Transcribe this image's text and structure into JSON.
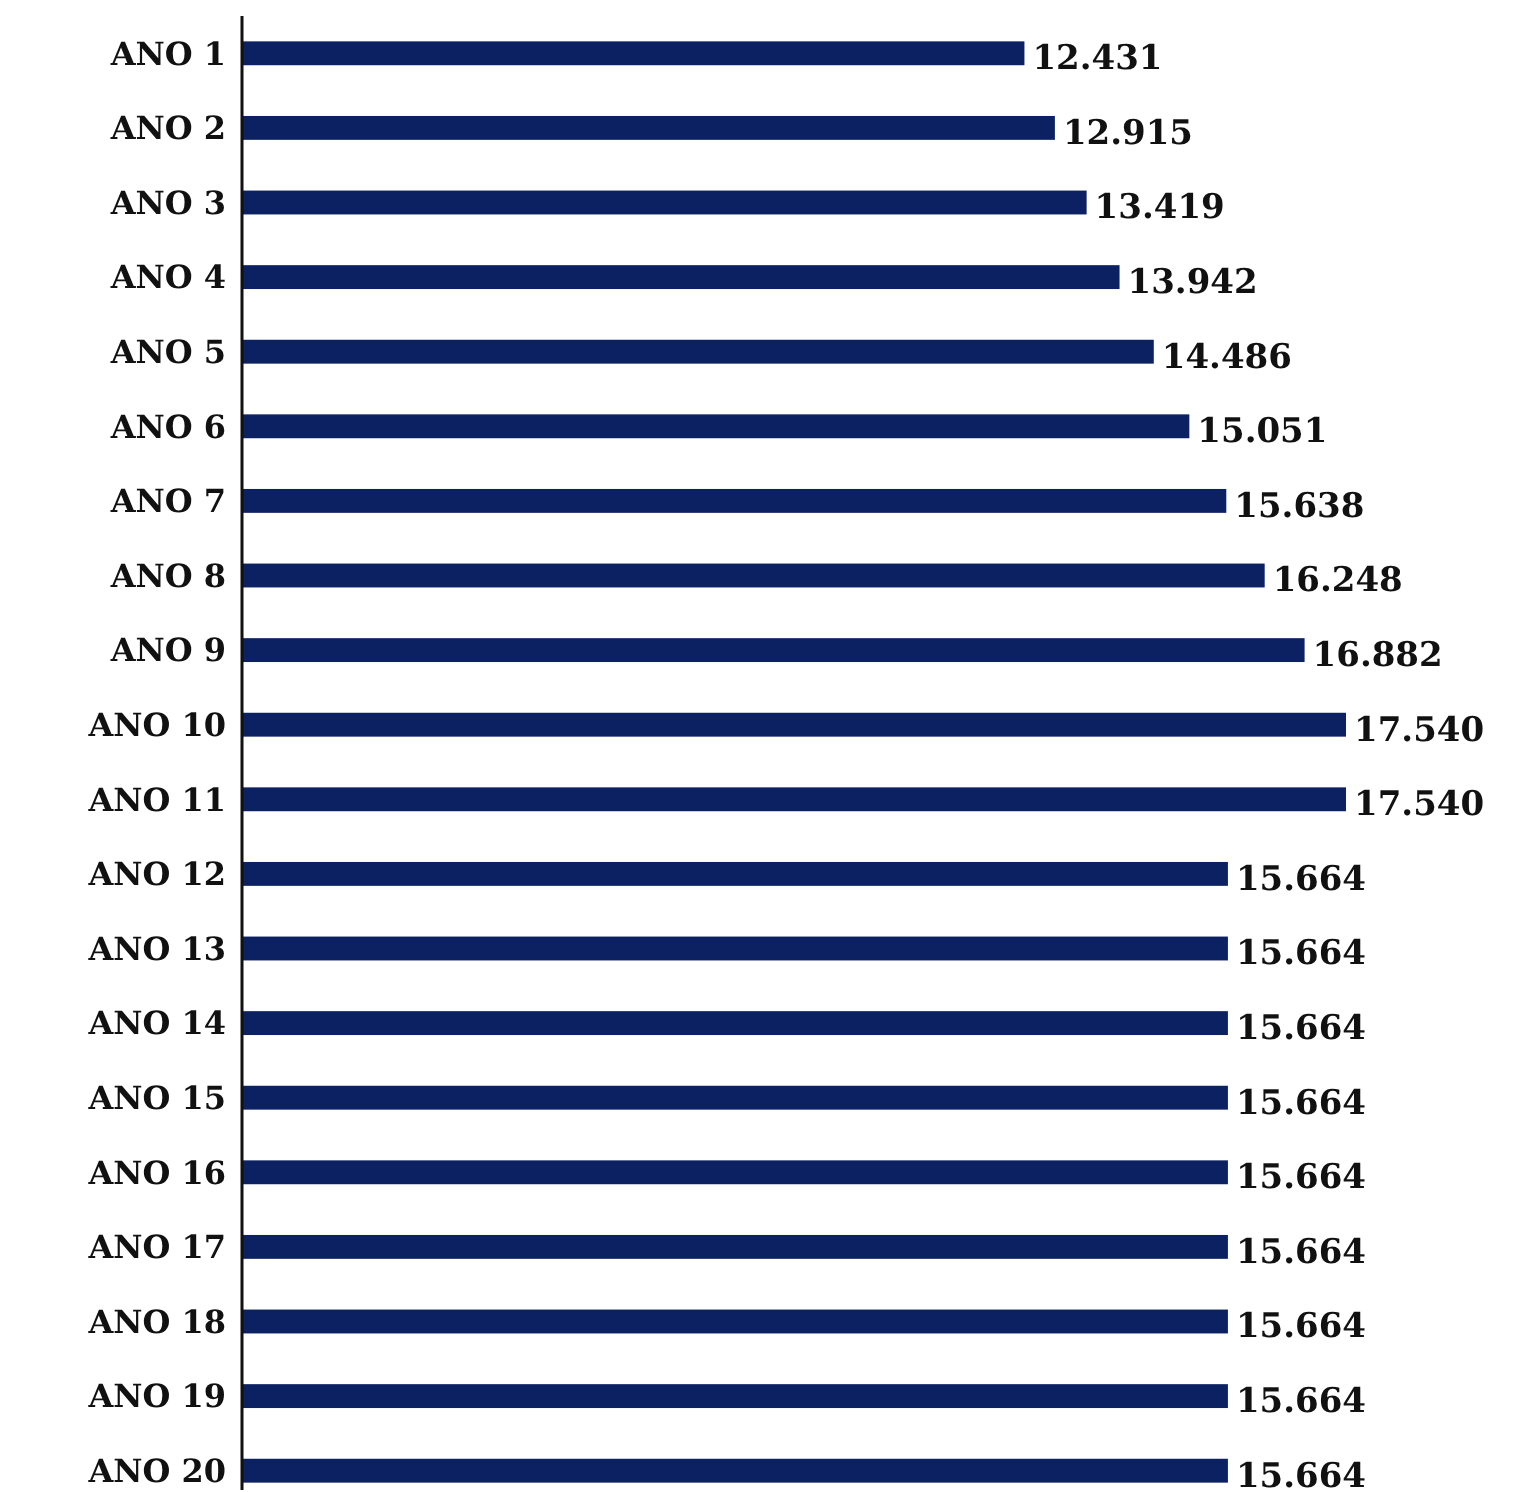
{
  "chart_data": {
    "type": "bar",
    "orientation": "horizontal",
    "color": "#0b2161",
    "categories": [
      "ANO 1",
      "ANO 2",
      "ANO 3",
      "ANO 4",
      "ANO 5",
      "ANO 6",
      "ANO 7",
      "ANO 8",
      "ANO 9",
      "ANO 10",
      "ANO 11",
      "ANO 12",
      "ANO 13",
      "ANO 14",
      "ANO 15",
      "ANO 16",
      "ANO 17",
      "ANO 18",
      "ANO 19",
      "ANO 20"
    ],
    "values": [
      12431,
      12915,
      13419,
      13942,
      14486,
      15051,
      15638,
      16248,
      16882,
      17540,
      17540,
      15664,
      15664,
      15664,
      15664,
      15664,
      15664,
      15664,
      15664,
      15664
    ],
    "value_labels": [
      "12.431",
      "12.915",
      "13.419",
      "13.942",
      "14.486",
      "15.051",
      "15.638",
      "16.248",
      "16.882",
      "17.540",
      "17.540",
      "15.664",
      "15.664",
      "15.664",
      "15.664",
      "15.664",
      "15.664",
      "15.664",
      "15.664",
      "15.664"
    ]
  }
}
